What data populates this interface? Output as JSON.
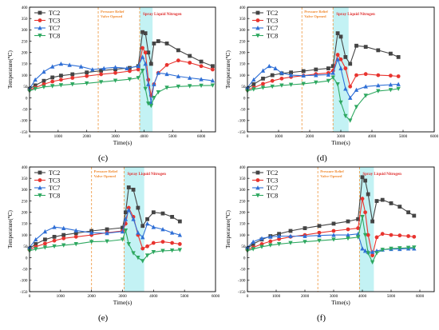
{
  "chart_data": [
    {
      "type": "line",
      "panel_label": "(c)",
      "xlabel": "Time(s)",
      "ylabel": "Temperature(℃)",
      "xlim": [
        0,
        6500
      ],
      "ylim": [
        -150,
        400
      ],
      "xticks": [
        0,
        1000,
        2000,
        3000,
        4000,
        5000,
        6000
      ],
      "yticks": [
        -150,
        -100,
        -50,
        0,
        50,
        100,
        150,
        200,
        250,
        300,
        350,
        400
      ],
      "grid": false,
      "legend_position": "top-left",
      "annotations": {
        "valve_time": 2400,
        "valve_text": [
          "Pressure Relief",
          "Valve Opened"
        ],
        "band_start": 3850,
        "band_end": 4300,
        "spray_text": "Spray Liquid Nitrogen"
      },
      "series": [
        {
          "name": "TC2",
          "color": "#444444",
          "marker": "square",
          "x": [
            0,
            200,
            500,
            800,
            1100,
            1500,
            2000,
            2500,
            3000,
            3500,
            3800,
            3950,
            4050,
            4150,
            4250,
            4350,
            4500,
            4800,
            5200,
            5600,
            6000,
            6400
          ],
          "y": [
            40,
            55,
            75,
            90,
            98,
            104,
            112,
            120,
            126,
            132,
            140,
            290,
            285,
            200,
            150,
            240,
            250,
            240,
            210,
            185,
            160,
            140
          ]
        },
        {
          "name": "TC3",
          "color": "#e8342f",
          "marker": "circle",
          "x": [
            0,
            200,
            500,
            800,
            1100,
            1500,
            2000,
            2500,
            3000,
            3500,
            3800,
            3950,
            4050,
            4150,
            4250,
            4350,
            4500,
            4800,
            5200,
            5600,
            6000,
            6400
          ],
          "y": [
            35,
            45,
            60,
            72,
            80,
            88,
            96,
            104,
            110,
            118,
            125,
            220,
            200,
            80,
            10,
            60,
            110,
            145,
            165,
            155,
            140,
            125
          ]
        },
        {
          "name": "TC7",
          "color": "#2f6fd6",
          "marker": "triangle",
          "x": [
            0,
            200,
            500,
            800,
            1100,
            1400,
            1800,
            2200,
            2600,
            3000,
            3400,
            3800,
            3950,
            4050,
            4150,
            4250,
            4350,
            4500,
            4800,
            5200,
            5600,
            6000,
            6400
          ],
          "y": [
            40,
            80,
            115,
            138,
            150,
            145,
            138,
            125,
            130,
            135,
            130,
            140,
            180,
            150,
            60,
            -20,
            60,
            110,
            105,
            95,
            88,
            82,
            76
          ]
        },
        {
          "name": "TC8",
          "color": "#2ea860",
          "marker": "triangle-down",
          "x": [
            0,
            200,
            500,
            800,
            1100,
            1500,
            2000,
            2500,
            3000,
            3500,
            3800,
            3950,
            4050,
            4150,
            4250,
            4350,
            4500,
            4800,
            5200,
            5600,
            6000,
            6400
          ],
          "y": [
            30,
            40,
            48,
            52,
            56,
            60,
            64,
            70,
            76,
            82,
            88,
            120,
            40,
            -25,
            -35,
            0,
            25,
            45,
            50,
            52,
            54,
            55
          ]
        }
      ]
    },
    {
      "type": "line",
      "panel_label": "(d)",
      "xlabel": "Time(s)",
      "ylabel": "Temperature(℃)",
      "xlim": [
        0,
        6000
      ],
      "ylim": [
        -150,
        400
      ],
      "xticks": [
        0,
        1000,
        2000,
        3000,
        4000,
        5000,
        6000
      ],
      "yticks": [
        -150,
        -100,
        -50,
        0,
        50,
        100,
        150,
        200,
        250,
        300,
        350,
        400
      ],
      "grid": false,
      "legend_position": "top-left",
      "annotations": {
        "valve_time": 1750,
        "valve_text": [
          "Pressure Relief",
          "Valve Opened"
        ],
        "band_start": 2750,
        "band_end": 3250,
        "spray_text": "Spray Liquid Nitrogen"
      },
      "series": [
        {
          "name": "TC2",
          "color": "#444444",
          "marker": "square",
          "x": [
            0,
            200,
            500,
            800,
            1100,
            1400,
            1800,
            2200,
            2600,
            2750,
            2900,
            3000,
            3150,
            3300,
            3500,
            3800,
            4200,
            4600,
            4850
          ],
          "y": [
            40,
            60,
            85,
            100,
            108,
            112,
            118,
            125,
            130,
            140,
            285,
            270,
            180,
            150,
            230,
            225,
            210,
            195,
            180
          ]
        },
        {
          "name": "TC3",
          "color": "#e8342f",
          "marker": "circle",
          "x": [
            0,
            200,
            500,
            800,
            1100,
            1400,
            1800,
            2200,
            2600,
            2750,
            2900,
            3000,
            3150,
            3300,
            3500,
            3800,
            4200,
            4600,
            4850
          ],
          "y": [
            35,
            45,
            62,
            75,
            85,
            92,
            98,
            105,
            110,
            120,
            190,
            170,
            130,
            50,
            100,
            105,
            100,
            98,
            95
          ]
        },
        {
          "name": "TC7",
          "color": "#2f6fd6",
          "marker": "triangle",
          "x": [
            0,
            200,
            500,
            700,
            900,
            1100,
            1400,
            1800,
            2200,
            2600,
            2750,
            2900,
            3000,
            3150,
            3300,
            3500,
            3800,
            4200,
            4600,
            4850
          ],
          "y": [
            45,
            80,
            120,
            140,
            130,
            110,
            100,
            98,
            100,
            102,
            110,
            170,
            130,
            40,
            0,
            35,
            50,
            55,
            58,
            60
          ]
        },
        {
          "name": "TC8",
          "color": "#2ea860",
          "marker": "triangle-down",
          "x": [
            0,
            200,
            500,
            800,
            1100,
            1400,
            1800,
            2200,
            2600,
            2750,
            2900,
            3000,
            3150,
            3300,
            3500,
            3800,
            4200,
            4600,
            4850
          ],
          "y": [
            30,
            38,
            45,
            50,
            55,
            58,
            62,
            68,
            75,
            90,
            60,
            -20,
            -80,
            -100,
            -40,
            10,
            30,
            35,
            40
          ]
        }
      ]
    },
    {
      "type": "line",
      "panel_label": "(e)",
      "xlabel": "Time(s)",
      "ylabel": "Temperature(℃)",
      "xlim": [
        0,
        6000
      ],
      "ylim": [
        -150,
        400
      ],
      "xticks": [
        0,
        1000,
        2000,
        3000,
        4000,
        5000,
        6000
      ],
      "yticks": [
        -150,
        -100,
        -50,
        0,
        50,
        100,
        150,
        200,
        250,
        300,
        350,
        400
      ],
      "grid": false,
      "legend_position": "top-left",
      "annotations": {
        "valve_time": 2000,
        "valve_text": [
          "Pressure Relief",
          "Valve Opened"
        ],
        "band_start": 3050,
        "band_end": 3700,
        "spray_text": "Spray Liquid Nitrogen"
      },
      "series": [
        {
          "name": "TC2",
          "color": "#444444",
          "marker": "square",
          "x": [
            0,
            200,
            500,
            800,
            1100,
            1500,
            2000,
            2500,
            3000,
            3100,
            3200,
            3350,
            3500,
            3650,
            3800,
            4000,
            4300,
            4600,
            4850
          ],
          "y": [
            40,
            60,
            80,
            92,
            100,
            108,
            118,
            125,
            132,
            200,
            310,
            300,
            220,
            140,
            170,
            200,
            195,
            180,
            160
          ]
        },
        {
          "name": "TC3",
          "color": "#e8342f",
          "marker": "circle",
          "x": [
            0,
            200,
            500,
            800,
            1100,
            1500,
            2000,
            2500,
            3000,
            3100,
            3200,
            3350,
            3500,
            3650,
            3800,
            4000,
            4300,
            4600,
            4850
          ],
          "y": [
            35,
            48,
            62,
            75,
            85,
            92,
            100,
            110,
            118,
            150,
            220,
            180,
            100,
            40,
            50,
            65,
            70,
            65,
            60
          ]
        },
        {
          "name": "TC7",
          "color": "#2f6fd6",
          "marker": "triangle",
          "x": [
            0,
            200,
            500,
            800,
            1100,
            1500,
            2000,
            2500,
            3000,
            3100,
            3200,
            3350,
            3500,
            3650,
            3800,
            4000,
            4300,
            4600,
            4850
          ],
          "y": [
            45,
            80,
            115,
            135,
            130,
            120,
            110,
            108,
            115,
            170,
            210,
            170,
            110,
            90,
            150,
            135,
            125,
            110,
            100
          ]
        },
        {
          "name": "TC8",
          "color": "#2ea860",
          "marker": "triangle-down",
          "x": [
            0,
            200,
            500,
            800,
            1100,
            1500,
            2000,
            2500,
            3000,
            3100,
            3200,
            3350,
            3500,
            3650,
            3800,
            4000,
            4300,
            4600,
            4850
          ],
          "y": [
            30,
            38,
            45,
            50,
            55,
            60,
            70,
            72,
            80,
            120,
            60,
            20,
            0,
            -15,
            10,
            25,
            30,
            32,
            34
          ]
        }
      ]
    },
    {
      "type": "line",
      "panel_label": "(f)",
      "xlabel": "Time(s)",
      "ylabel": "Temperature(℃)",
      "xlim": [
        0,
        6500
      ],
      "ylim": [
        -150,
        400
      ],
      "xticks": [
        0,
        1000,
        2000,
        3000,
        4000,
        5000,
        6000
      ],
      "yticks": [
        -150,
        -100,
        -50,
        0,
        50,
        100,
        150,
        200,
        250,
        300,
        350,
        400
      ],
      "grid": false,
      "legend_position": "top-left",
      "annotations": {
        "valve_time": 2450,
        "valve_text": [
          "Pressure Relief",
          "Valve Opened"
        ],
        "band_start": 3900,
        "band_end": 4400,
        "spray_text": "Spray Liquid Nitrogen"
      },
      "series": [
        {
          "name": "TC2",
          "color": "#444444",
          "marker": "square",
          "x": [
            0,
            200,
            500,
            800,
            1100,
            1500,
            2000,
            2500,
            3000,
            3500,
            3850,
            4000,
            4100,
            4200,
            4350,
            4500,
            4700,
            5000,
            5300,
            5600,
            5800
          ],
          "y": [
            40,
            60,
            80,
            95,
            105,
            118,
            130,
            140,
            150,
            160,
            170,
            355,
            340,
            280,
            160,
            250,
            255,
            240,
            225,
            200,
            185
          ]
        },
        {
          "name": "TC3",
          "color": "#e8342f",
          "marker": "circle",
          "x": [
            0,
            200,
            500,
            800,
            1100,
            1500,
            2000,
            2500,
            3000,
            3500,
            3850,
            4000,
            4100,
            4200,
            4350,
            4500,
            4700,
            5000,
            5300,
            5600,
            5800
          ],
          "y": [
            35,
            45,
            60,
            72,
            82,
            92,
            100,
            110,
            118,
            125,
            130,
            260,
            200,
            100,
            10,
            90,
            105,
            100,
            98,
            95,
            92
          ]
        },
        {
          "name": "TC7",
          "color": "#2f6fd6",
          "marker": "triangle",
          "x": [
            0,
            200,
            500,
            800,
            1100,
            1500,
            2000,
            2500,
            3000,
            3500,
            3850,
            4000,
            4100,
            4200,
            4350,
            4500,
            4700,
            5000,
            5300,
            5600,
            5800
          ],
          "y": [
            45,
            70,
            85,
            92,
            95,
            95,
            95,
            98,
            100,
            100,
            105,
            40,
            30,
            25,
            25,
            30,
            35,
            38,
            38,
            40,
            40
          ]
        },
        {
          "name": "TC8",
          "color": "#2ea860",
          "marker": "triangle-down",
          "x": [
            0,
            200,
            500,
            800,
            1100,
            1500,
            2000,
            2500,
            3000,
            3500,
            3850,
            4000,
            4100,
            4200,
            4350,
            4500,
            4700,
            5000,
            5300,
            5600,
            5800
          ],
          "y": [
            30,
            38,
            48,
            55,
            60,
            65,
            70,
            75,
            80,
            85,
            90,
            180,
            100,
            20,
            -20,
            20,
            35,
            40,
            42,
            44,
            45
          ]
        }
      ]
    }
  ]
}
